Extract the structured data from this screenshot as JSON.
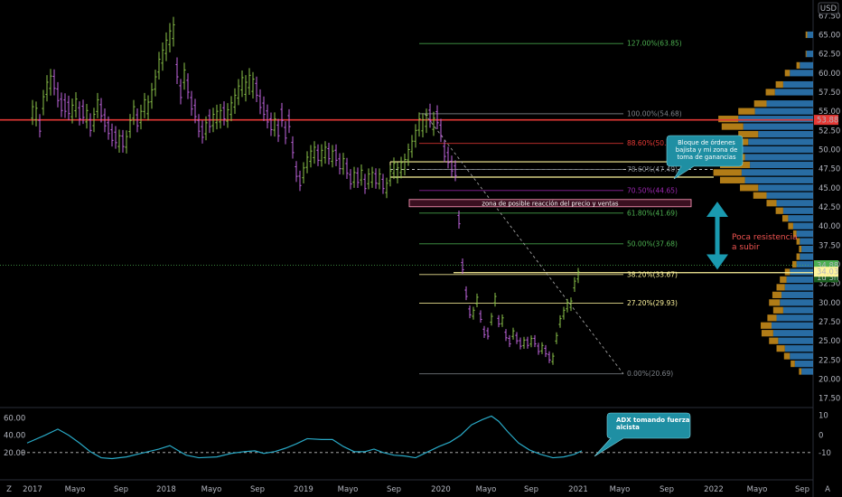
{
  "currency_label": "USD",
  "corner_glyph_left": "Z",
  "corner_glyph_right": "A",
  "colors": {
    "bull": "#8bc34a",
    "bear": "#c266e0",
    "resistance": "#e53935",
    "yellow": "#fff59d",
    "fib_grey": "#7d8288",
    "adx": "#29a9c6",
    "callout": "#1f8fa3",
    "arrow": "#1a9ab0",
    "vp_blue": "#2f7fbf",
    "vp_orange": "#c48a1a"
  },
  "chart_data": {
    "type": "candlestick",
    "price_axis": {
      "range": [
        16.4,
        68.6
      ],
      "ticks": [
        "67.50",
        "65.00",
        "62.50",
        "60.00",
        "57.50",
        "55.00",
        "52.50",
        "50.00",
        "47.50",
        "45.00",
        "42.50",
        "40.00",
        "37.50",
        "35.00",
        "32.50",
        "30.00",
        "27.50",
        "25.00",
        "22.50",
        "20.00",
        "17.50"
      ]
    },
    "time_axis": {
      "labels": [
        "2017",
        "Mayo",
        "Sep",
        "2018",
        "Mayo",
        "Sep",
        "2019",
        "Mayo",
        "Sep",
        "2020",
        "Mayo",
        "Sep",
        "2021",
        "Mayo",
        "Sep",
        "2022",
        "Mayo",
        "Sep"
      ]
    },
    "price_tags": [
      {
        "value": 53.88,
        "label": "53.88",
        "color": "#e53935",
        "text_color": "#ffffff"
      },
      {
        "value": 34.88,
        "label": "34.88",
        "color": "#4caf50",
        "text_color": "#000000"
      },
      {
        "value": 33.3,
        "label": "1d 3h",
        "color": "#1b5e20",
        "text_color": "#ffffff"
      },
      {
        "value": 34.03,
        "label": "34.03",
        "color": "#fff59d",
        "text_color": "#000000"
      }
    ],
    "fibonacci": [
      {
        "pct": "127.00%",
        "value": 63.85,
        "label": "127.00%(63.85)",
        "color": "#4caf50"
      },
      {
        "pct": "100.00%",
        "value": 54.68,
        "label": "100.00%(54.68)",
        "color": "#7d8288"
      },
      {
        "pct": "88.60%",
        "value": 50.8,
        "label": "88.60%(50.80)",
        "color": "#e53935"
      },
      {
        "pct": "78.60%",
        "value": 47.4,
        "label": "78.60%(47.40)",
        "color": "#7d8288"
      },
      {
        "pct": "70.50%",
        "value": 44.65,
        "label": "70.50%(44.65)",
        "color": "#9c27b0"
      },
      {
        "pct": "61.80%",
        "value": 41.69,
        "label": "61.80%(41.69)",
        "color": "#4caf50"
      },
      {
        "pct": "50.00%",
        "value": 37.68,
        "label": "50.00%(37.68)",
        "color": "#4caf50"
      },
      {
        "pct": "38.20%",
        "value": 33.67,
        "label": "38.20%(33.67)",
        "color": "#fff59d"
      },
      {
        "pct": "27.20%",
        "value": 29.93,
        "label": "27.20%(29.93)",
        "color": "#fff59d"
      },
      {
        "pct": "0.00%",
        "value": 20.69,
        "label": "0.00%(20.69)",
        "color": "#7d8288"
      }
    ],
    "annotations": {
      "order_block_note": [
        "Bloque  de órdenes",
        "bajista y mi zona de",
        "toma de ganancias"
      ],
      "reaction_zone": "zona de posible reacción del precio y ventas",
      "resistance_note": [
        "Poca resistencia",
        "a subir"
      ],
      "adx_note": [
        "ADX tomando fuerza",
        "alcista"
      ]
    },
    "candles": [
      [
        36,
        1,
        55.6
      ],
      [
        40,
        1,
        55.4
      ],
      [
        44,
        -1,
        52.4
      ],
      [
        48,
        1,
        56.9
      ],
      [
        52,
        1,
        58.8
      ],
      [
        56,
        1,
        59.6
      ],
      [
        60,
        -1,
        58.0
      ],
      [
        64,
        -1,
        56.4
      ],
      [
        68,
        -1,
        55.1
      ],
      [
        72,
        -1,
        55.0
      ],
      [
        76,
        -1,
        54.7
      ],
      [
        80,
        1,
        55.8
      ],
      [
        84,
        1,
        56.6
      ],
      [
        88,
        -1,
        54.0
      ],
      [
        92,
        -1,
        54.2
      ],
      [
        96,
        1,
        55.1
      ],
      [
        100,
        -1,
        52.5
      ],
      [
        104,
        1,
        54.6
      ],
      [
        108,
        1,
        56.5
      ],
      [
        112,
        -1,
        54.4
      ],
      [
        116,
        -1,
        53.1
      ],
      [
        120,
        -1,
        52.1
      ],
      [
        124,
        -1,
        51.2
      ],
      [
        128,
        -1,
        50.9
      ],
      [
        132,
        1,
        51.8
      ],
      [
        136,
        -1,
        50.4
      ],
      [
        140,
        1,
        51.7
      ],
      [
        144,
        1,
        53.8
      ],
      [
        148,
        1,
        55.6
      ],
      [
        152,
        -1,
        53.1
      ],
      [
        156,
        1,
        55.0
      ],
      [
        160,
        1,
        56.5
      ],
      [
        164,
        1,
        56.2
      ],
      [
        168,
        1,
        57.8
      ],
      [
        172,
        1,
        59.5
      ],
      [
        176,
        1,
        61.8
      ],
      [
        180,
        1,
        63.0
      ],
      [
        184,
        1,
        64.3
      ],
      [
        188,
        1,
        65.5
      ],
      [
        192,
        1,
        66.3
      ],
      [
        196,
        -1,
        59.5
      ],
      [
        200,
        -1,
        56.8
      ],
      [
        204,
        1,
        60.4
      ],
      [
        208,
        -1,
        57.5
      ],
      [
        212,
        -1,
        55.3
      ],
      [
        216,
        -1,
        54.3
      ],
      [
        220,
        -1,
        52.4
      ],
      [
        224,
        -1,
        51.6
      ],
      [
        228,
        1,
        53.5
      ],
      [
        232,
        -1,
        53.0
      ],
      [
        236,
        1,
        54.6
      ],
      [
        240,
        1,
        55.0
      ],
      [
        244,
        1,
        55.1
      ],
      [
        248,
        -1,
        54.0
      ],
      [
        252,
        1,
        55.2
      ],
      [
        256,
        1,
        56.1
      ],
      [
        260,
        1,
        57.1
      ],
      [
        264,
        1,
        58.3
      ],
      [
        268,
        1,
        59.4
      ],
      [
        272,
        1,
        58.8
      ],
      [
        276,
        1,
        59.7
      ],
      [
        280,
        1,
        59.2
      ],
      [
        284,
        -1,
        57.1
      ],
      [
        288,
        -1,
        55.5
      ],
      [
        292,
        -1,
        54.6
      ],
      [
        296,
        -1,
        53.6
      ],
      [
        300,
        -1,
        52.6
      ],
      [
        304,
        1,
        54.0
      ],
      [
        308,
        -1,
        51.8
      ],
      [
        312,
        -1,
        53.8
      ],
      [
        316,
        -1,
        51.5
      ],
      [
        320,
        -1,
        53.0
      ],
      [
        324,
        -1,
        49.6
      ],
      [
        328,
        -1,
        46.5
      ],
      [
        332,
        -1,
        45.3
      ],
      [
        336,
        1,
        47.6
      ],
      [
        340,
        1,
        49.0
      ],
      [
        344,
        1,
        49.8
      ],
      [
        348,
        1,
        50.3
      ],
      [
        352,
        -1,
        48.6
      ],
      [
        356,
        1,
        49.9
      ],
      [
        360,
        1,
        50.3
      ],
      [
        364,
        -1,
        48.8
      ],
      [
        368,
        1,
        49.8
      ],
      [
        372,
        -1,
        48.6
      ],
      [
        376,
        -1,
        47.5
      ],
      [
        380,
        1,
        48.8
      ],
      [
        384,
        -1,
        46.9
      ],
      [
        388,
        -1,
        45.5
      ],
      [
        392,
        1,
        47.0
      ],
      [
        396,
        -1,
        45.7
      ],
      [
        400,
        1,
        47.3
      ],
      [
        404,
        -1,
        44.9
      ],
      [
        408,
        1,
        46.8
      ],
      [
        412,
        1,
        47.0
      ],
      [
        416,
        -1,
        45.6
      ],
      [
        420,
        1,
        46.8
      ],
      [
        424,
        -1,
        44.9
      ],
      [
        428,
        1,
        45.6
      ],
      [
        432,
        1,
        47.2
      ],
      [
        436,
        1,
        48.2
      ],
      [
        440,
        1,
        47.6
      ],
      [
        444,
        1,
        48.3
      ],
      [
        448,
        1,
        48.7
      ],
      [
        452,
        1,
        50.0
      ],
      [
        456,
        1,
        51.1
      ],
      [
        460,
        1,
        52.5
      ],
      [
        464,
        1,
        54.0
      ],
      [
        468,
        1,
        53.9
      ],
      [
        472,
        1,
        54.5
      ],
      [
        476,
        -1,
        53.7
      ],
      [
        480,
        1,
        54.1
      ],
      [
        484,
        -1,
        53.5
      ],
      [
        488,
        -1,
        51.8
      ],
      [
        492,
        -1,
        49.1
      ],
      [
        496,
        -1,
        48.3
      ],
      [
        500,
        -1,
        47.2
      ],
      [
        504,
        -1,
        46.6
      ],
      [
        508,
        -1,
        40.3
      ],
      [
        512,
        -1,
        34.3
      ],
      [
        516,
        -1,
        30.8
      ],
      [
        520,
        -1,
        28.4
      ],
      [
        524,
        1,
        29.0
      ],
      [
        528,
        1,
        30.7
      ],
      [
        532,
        -1,
        27.8
      ],
      [
        536,
        -1,
        25.8
      ],
      [
        540,
        -1,
        25.6
      ],
      [
        544,
        1,
        28.2
      ],
      [
        548,
        1,
        30.8
      ],
      [
        552,
        -1,
        27.2
      ],
      [
        556,
        1,
        28.0
      ],
      [
        560,
        -1,
        25.4
      ],
      [
        564,
        -1,
        24.6
      ],
      [
        568,
        1,
        26.3
      ],
      [
        572,
        -1,
        25.0
      ],
      [
        576,
        -1,
        24.3
      ],
      [
        580,
        1,
        25.1
      ],
      [
        584,
        -1,
        24.4
      ],
      [
        588,
        1,
        25.3
      ],
      [
        592,
        -1,
        24.6
      ],
      [
        596,
        -1,
        23.6
      ],
      [
        600,
        1,
        24.4
      ],
      [
        604,
        -1,
        23.3
      ],
      [
        608,
        -1,
        22.5
      ],
      [
        612,
        1,
        23.0
      ],
      [
        616,
        1,
        25.7
      ],
      [
        620,
        1,
        27.9
      ],
      [
        624,
        1,
        29.0
      ],
      [
        628,
        1,
        30.0
      ],
      [
        632,
        1,
        30.2
      ],
      [
        636,
        1,
        32.8
      ],
      [
        640,
        1,
        34.0
      ]
    ],
    "volume_profile": [
      [
        65.0,
        0.7,
        0.2
      ],
      [
        62.5,
        0.8,
        0.1
      ],
      [
        61.0,
        1.6,
        0.4
      ],
      [
        60.0,
        2.8,
        0.6
      ],
      [
        58.5,
        3.6,
        0.9
      ],
      [
        57.5,
        4.6,
        1.1
      ],
      [
        56.0,
        5.6,
        1.5
      ],
      [
        55.0,
        7.0,
        2.0
      ],
      [
        54.0,
        9.0,
        2.4
      ],
      [
        53.0,
        8.4,
        2.6
      ],
      [
        52.0,
        6.6,
        2.4
      ],
      [
        51.0,
        7.8,
        2.7
      ],
      [
        50.0,
        9.2,
        3.1
      ],
      [
        49.0,
        8.2,
        3.1
      ],
      [
        48.0,
        7.6,
        3.6
      ],
      [
        47.0,
        8.6,
        3.4
      ],
      [
        46.0,
        8.2,
        3.0
      ],
      [
        45.0,
        6.6,
        2.2
      ],
      [
        44.0,
        5.6,
        1.6
      ],
      [
        43.0,
        4.4,
        1.2
      ],
      [
        42.0,
        3.6,
        0.9
      ],
      [
        41.0,
        3.0,
        0.7
      ],
      [
        40.0,
        2.4,
        0.6
      ],
      [
        39.0,
        2.0,
        0.4
      ],
      [
        38.0,
        1.6,
        0.4
      ],
      [
        37.0,
        1.4,
        0.3
      ],
      [
        36.0,
        1.6,
        0.4
      ],
      [
        35.0,
        2.0,
        0.5
      ],
      [
        34.0,
        2.8,
        0.6
      ],
      [
        33.0,
        3.2,
        0.8
      ],
      [
        32.0,
        3.4,
        1.0
      ],
      [
        31.0,
        3.8,
        1.1
      ],
      [
        30.0,
        4.0,
        1.3
      ],
      [
        29.0,
        3.6,
        1.2
      ],
      [
        28.0,
        4.4,
        1.1
      ],
      [
        27.0,
        5.0,
        1.3
      ],
      [
        26.0,
        4.8,
        1.4
      ],
      [
        25.0,
        4.2,
        1.1
      ],
      [
        24.0,
        3.4,
        1.0
      ],
      [
        23.0,
        2.8,
        0.7
      ],
      [
        22.0,
        2.2,
        0.5
      ],
      [
        21.0,
        1.4,
        0.3
      ]
    ],
    "adx_axis": {
      "left_ticks": [
        "60.00",
        "40.00",
        "20.00"
      ],
      "right_ticks": [
        "10",
        "0",
        "-10"
      ],
      "reference_level": 20
    },
    "adx": [
      [
        30,
        31
      ],
      [
        50,
        40
      ],
      [
        64,
        47
      ],
      [
        76,
        40
      ],
      [
        88,
        31
      ],
      [
        100,
        21
      ],
      [
        112,
        14
      ],
      [
        124,
        13
      ],
      [
        140,
        15
      ],
      [
        160,
        20
      ],
      [
        176,
        24
      ],
      [
        188,
        28
      ],
      [
        196,
        23
      ],
      [
        206,
        17
      ],
      [
        220,
        14
      ],
      [
        240,
        15
      ],
      [
        256,
        19
      ],
      [
        270,
        21
      ],
      [
        282,
        22
      ],
      [
        292,
        19
      ],
      [
        304,
        21
      ],
      [
        316,
        25
      ],
      [
        328,
        30
      ],
      [
        340,
        36
      ],
      [
        356,
        35
      ],
      [
        368,
        35
      ],
      [
        380,
        27
      ],
      [
        392,
        21
      ],
      [
        404,
        21
      ],
      [
        414,
        24
      ],
      [
        424,
        20
      ],
      [
        436,
        17
      ],
      [
        448,
        16
      ],
      [
        460,
        14
      ],
      [
        474,
        21
      ],
      [
        486,
        27
      ],
      [
        498,
        32
      ],
      [
        510,
        40
      ],
      [
        522,
        52
      ],
      [
        534,
        58
      ],
      [
        544,
        62
      ],
      [
        552,
        56
      ],
      [
        562,
        44
      ],
      [
        574,
        31
      ],
      [
        586,
        23
      ],
      [
        598,
        18
      ],
      [
        612,
        14
      ],
      [
        624,
        15
      ],
      [
        636,
        18
      ],
      [
        644,
        22
      ]
    ]
  }
}
